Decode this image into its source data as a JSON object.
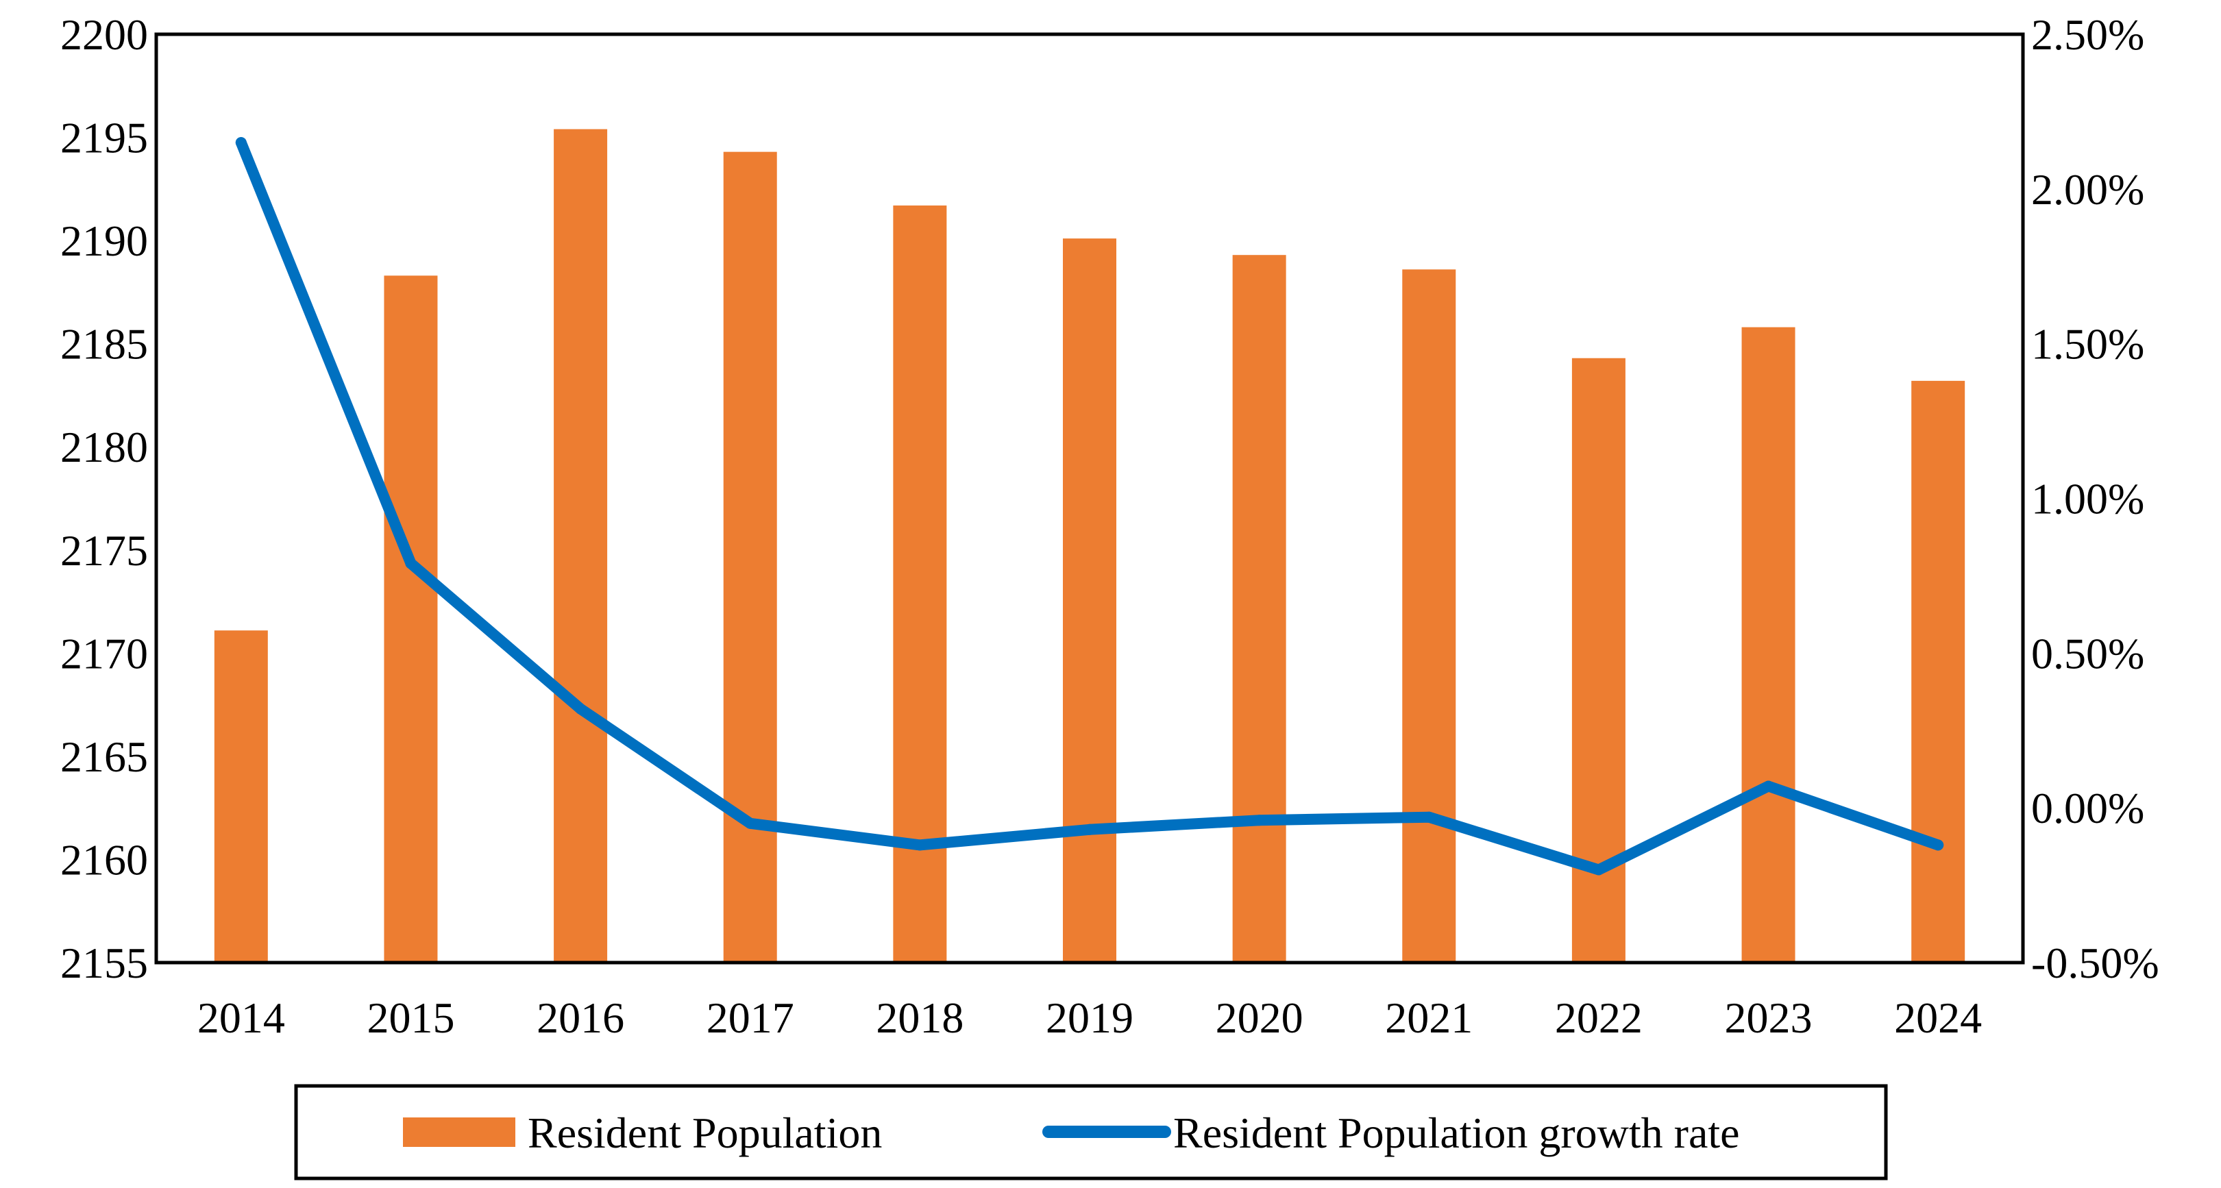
{
  "chart_data": {
    "type": "bar+line",
    "categories": [
      "2014",
      "2015",
      "2016",
      "2017",
      "2018",
      "2019",
      "2020",
      "2021",
      "2022",
      "2023",
      "2024"
    ],
    "series": [
      {
        "name": "Resident Population",
        "type": "bar",
        "axis": "left",
        "color": "#ED7D31",
        "values": [
          2171.1,
          2188.3,
          2195.4,
          2194.3,
          2191.7,
          2190.1,
          2189.3,
          2188.6,
          2184.3,
          2185.8,
          2183.2
        ]
      },
      {
        "name": "Resident Population growth rate",
        "type": "line",
        "axis": "right",
        "color": "#0070C0",
        "values": [
          0.0215,
          0.0079,
          0.0032,
          -0.0005,
          -0.0012,
          -0.0007,
          -0.0004,
          -0.0003,
          -0.002,
          0.0007,
          -0.0012
        ]
      }
    ],
    "left_axis": {
      "ylim": [
        2155,
        2200
      ],
      "ticks": [
        "2155",
        "2160",
        "2165",
        "2170",
        "2175",
        "2180",
        "2185",
        "2190",
        "2195",
        "2200"
      ]
    },
    "right_axis": {
      "ylim": [
        -0.005,
        0.025
      ],
      "ticks": [
        "-0.50%",
        "0.00%",
        "0.50%",
        "1.00%",
        "1.50%",
        "2.00%",
        "2.50%"
      ]
    },
    "legend": {
      "position": "bottom",
      "items": [
        "Resident Population",
        "Resident Population growth rate"
      ]
    },
    "grid": false,
    "title": "",
    "xlabel": "",
    "ylabel": ""
  }
}
